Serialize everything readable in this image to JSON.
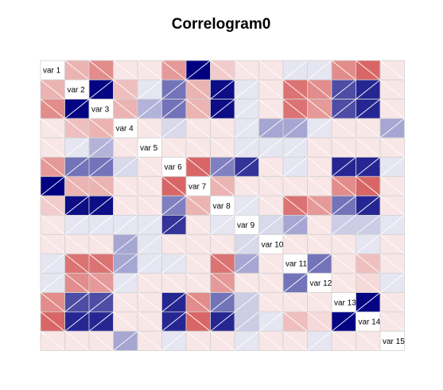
{
  "chart_data": {
    "type": "heatmap",
    "title": "Correlogram0",
    "variables": [
      "var 1",
      "var 2",
      "var 3",
      "var 4",
      "var 5",
      "var 6",
      "var 7",
      "var 8",
      "var 9",
      "var 10",
      "var 11",
      "var 12",
      "var 13",
      "var 14",
      "var 15"
    ],
    "value_range": [
      -1,
      1
    ],
    "colors": {
      "negative": "#c00000",
      "positive": "#000080",
      "neutral": "#ffffff",
      "grid": "#d3d3d3"
    },
    "matrix": [
      [
        1.0,
        -0.3,
        -0.45,
        -0.1,
        -0.1,
        -0.4,
        1.0,
        -0.2,
        -0.1,
        -0.1,
        0.1,
        0.1,
        -0.45,
        -0.6,
        -0.1
      ],
      [
        -0.3,
        1.0,
        0.98,
        -0.25,
        0.1,
        0.55,
        -0.3,
        0.95,
        0.1,
        -0.1,
        -0.55,
        -0.45,
        0.7,
        0.85,
        -0.1
      ],
      [
        -0.45,
        0.98,
        1.0,
        -0.3,
        0.3,
        0.55,
        -0.3,
        0.95,
        0.1,
        -0.1,
        -0.55,
        -0.4,
        0.7,
        0.85,
        -0.1
      ],
      [
        -0.1,
        -0.25,
        -0.3,
        1.0,
        -0.1,
        0.15,
        -0.1,
        -0.1,
        0.1,
        0.35,
        0.35,
        0.1,
        -0.1,
        -0.1,
        0.35
      ],
      [
        -0.1,
        0.1,
        0.3,
        -0.1,
        1.0,
        -0.1,
        -0.1,
        -0.1,
        0.1,
        0.1,
        0.1,
        -0.1,
        -0.1,
        -0.1,
        -0.1
      ],
      [
        -0.4,
        0.55,
        0.55,
        0.15,
        -0.1,
        1.0,
        -0.6,
        0.5,
        0.8,
        -0.1,
        0.1,
        -0.1,
        0.85,
        0.85,
        0.1
      ],
      [
        1.0,
        -0.3,
        -0.3,
        -0.1,
        -0.1,
        -0.6,
        1.0,
        -0.3,
        -0.1,
        -0.1,
        -0.1,
        -0.1,
        -0.45,
        -0.6,
        -0.1
      ],
      [
        -0.2,
        0.95,
        0.95,
        -0.1,
        -0.1,
        0.5,
        -0.3,
        1.0,
        0.1,
        -0.1,
        -0.55,
        -0.4,
        0.55,
        0.85,
        -0.1
      ],
      [
        -0.1,
        0.1,
        0.1,
        0.1,
        0.1,
        0.8,
        -0.1,
        0.1,
        1.0,
        0.15,
        0.35,
        -0.1,
        0.2,
        0.2,
        0.1
      ],
      [
        -0.1,
        -0.1,
        -0.1,
        0.35,
        0.1,
        -0.1,
        -0.1,
        -0.1,
        0.15,
        1.0,
        -0.1,
        -0.1,
        -0.1,
        0.1,
        -0.1
      ],
      [
        0.1,
        -0.55,
        -0.55,
        0.35,
        0.1,
        0.1,
        -0.1,
        -0.55,
        0.35,
        -0.1,
        1.0,
        0.55,
        -0.1,
        -0.25,
        -0.1
      ],
      [
        0.1,
        -0.45,
        -0.4,
        0.1,
        -0.1,
        -0.1,
        -0.1,
        -0.4,
        -0.1,
        -0.1,
        0.55,
        1.0,
        -0.1,
        -0.15,
        0.1
      ],
      [
        -0.45,
        0.7,
        0.7,
        -0.1,
        -0.1,
        0.85,
        -0.45,
        0.55,
        0.2,
        -0.1,
        -0.1,
        -0.1,
        1.0,
        0.98,
        -0.1
      ],
      [
        -0.6,
        0.85,
        0.85,
        -0.1,
        -0.1,
        0.85,
        -0.6,
        0.85,
        0.2,
        0.1,
        -0.25,
        -0.15,
        0.98,
        1.0,
        -0.1
      ],
      [
        -0.1,
        -0.1,
        -0.1,
        0.35,
        -0.1,
        0.1,
        -0.1,
        -0.1,
        0.1,
        -0.1,
        -0.1,
        0.1,
        -0.1,
        -0.1,
        1.0
      ]
    ]
  }
}
